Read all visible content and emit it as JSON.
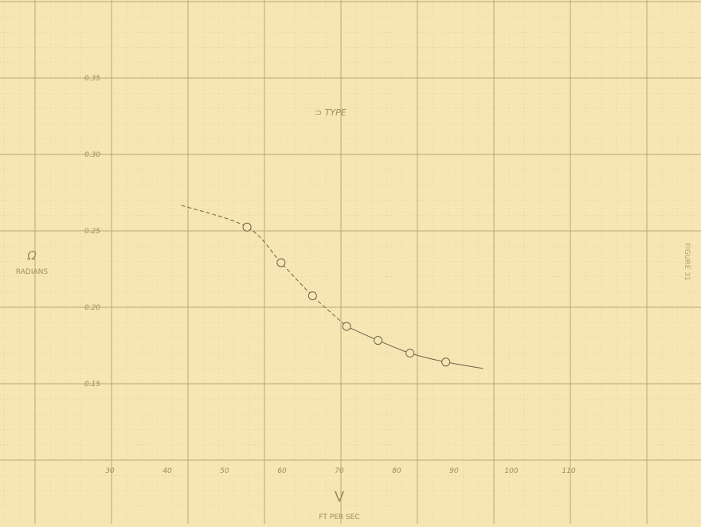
{
  "chart_data": {
    "type": "line",
    "title": "",
    "header_annotation": "⊃ TYPE",
    "ylabel_symbol": "Ω",
    "ylabel": "RADIANS",
    "xlabel_symbol": "V",
    "xlabel": "FT PER SEC",
    "side_label": "FIGURE 31",
    "grid": true,
    "legend": "none",
    "xlim": [
      0,
      140
    ],
    "ylim": [
      0.1,
      0.4
    ],
    "x_ticks": [
      "30",
      "40",
      "50",
      "60",
      "70",
      "80",
      "90",
      "100",
      "110"
    ],
    "y_ticks": [
      "0.35",
      "0.30",
      "0.25",
      "0.20",
      "0.15"
    ],
    "series": [
      {
        "marker": "open-circle",
        "x": [
          48.5,
          56.3,
          63.5,
          71.3,
          78.5,
          85.8,
          94.0
        ],
        "y": [
          0.283,
          0.255,
          0.229,
          0.205,
          0.194,
          0.184,
          0.177
        ]
      }
    ],
    "fit_curve": {
      "x": [
        33.5,
        48.5,
        56.3,
        63.5,
        71.3,
        78.5,
        85.8,
        94.0,
        102.5
      ],
      "y": [
        0.3,
        0.283,
        0.255,
        0.229,
        0.205,
        0.194,
        0.184,
        0.177,
        0.172
      ]
    }
  }
}
